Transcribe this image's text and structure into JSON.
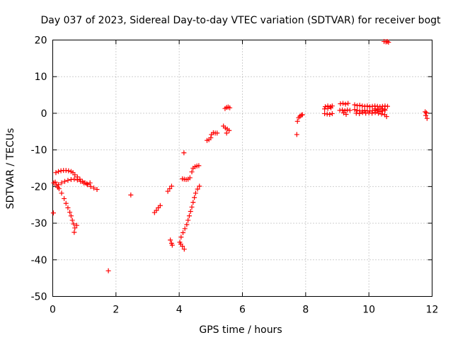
{
  "chart_data": {
    "type": "scatter",
    "title": "Day 037 of 2023, Sidereal Day-to-day VTEC variation (SDTVAR) for receiver bogt",
    "xlabel": "GPS time / hours",
    "ylabel": "SDTVAR / TECUs",
    "xlim": [
      0,
      12
    ],
    "ylim": [
      -50,
      20
    ],
    "xticks": [
      0,
      2,
      4,
      6,
      8,
      10,
      12
    ],
    "yticks": [
      -50,
      -40,
      -30,
      -20,
      -10,
      0,
      10,
      20
    ],
    "grid": true,
    "marker": "plus",
    "marker_color": "#ff0000",
    "series": [
      {
        "points": [
          [
            0.02,
            -27.2
          ],
          [
            0.03,
            -19.0
          ],
          [
            0.08,
            -18.8
          ],
          [
            0.12,
            -19.6
          ],
          [
            0.16,
            -20.2
          ],
          [
            0.1,
            -16.2
          ],
          [
            0.18,
            -15.9
          ],
          [
            0.26,
            -15.7
          ],
          [
            0.34,
            -15.6
          ],
          [
            0.42,
            -15.6
          ],
          [
            0.5,
            -15.7
          ],
          [
            0.58,
            -15.9
          ],
          [
            0.64,
            -16.2
          ],
          [
            0.7,
            -16.8
          ],
          [
            0.78,
            -17.4
          ],
          [
            0.86,
            -18.0
          ],
          [
            0.94,
            -18.6
          ],
          [
            1.02,
            -19.0
          ],
          [
            1.1,
            -19.5
          ],
          [
            1.2,
            -20.0
          ],
          [
            1.3,
            -20.4
          ],
          [
            1.4,
            -20.8
          ],
          [
            0.18,
            -19.5
          ],
          [
            0.28,
            -19.0
          ],
          [
            0.38,
            -18.6
          ],
          [
            0.48,
            -18.3
          ],
          [
            0.58,
            -18.1
          ],
          [
            0.68,
            -18.0
          ],
          [
            0.78,
            -18.2
          ],
          [
            0.88,
            -18.6
          ],
          [
            0.98,
            -19.0
          ],
          [
            1.08,
            -19.2
          ],
          [
            1.18,
            -19.0
          ],
          [
            0.2,
            -20.6
          ],
          [
            0.28,
            -21.8
          ],
          [
            0.36,
            -23.3
          ],
          [
            0.42,
            -24.6
          ],
          [
            0.48,
            -25.8
          ],
          [
            0.54,
            -27.0
          ],
          [
            0.58,
            -28.0
          ],
          [
            0.62,
            -29.2
          ],
          [
            0.66,
            -30.2
          ],
          [
            0.7,
            -31.3
          ],
          [
            0.68,
            -32.5
          ],
          [
            0.76,
            -30.6
          ],
          [
            1.76,
            -43.0
          ],
          [
            2.47,
            -22.3
          ],
          [
            3.22,
            -27.1
          ],
          [
            3.28,
            -26.5
          ],
          [
            3.34,
            -25.8
          ],
          [
            3.4,
            -25.2
          ],
          [
            3.64,
            -21.3
          ],
          [
            3.7,
            -20.6
          ],
          [
            3.76,
            -19.9
          ],
          [
            3.72,
            -34.6
          ],
          [
            3.76,
            -35.5
          ],
          [
            3.78,
            -36.0
          ],
          [
            4.05,
            -35.7
          ],
          [
            4.1,
            -36.3
          ],
          [
            4.16,
            -37.1
          ],
          [
            4.02,
            -35.2
          ],
          [
            4.06,
            -33.8
          ],
          [
            4.12,
            -32.6
          ],
          [
            4.18,
            -31.5
          ],
          [
            4.24,
            -30.4
          ],
          [
            4.28,
            -29.2
          ],
          [
            4.32,
            -28.0
          ],
          [
            4.36,
            -26.8
          ],
          [
            4.4,
            -25.6
          ],
          [
            4.44,
            -24.3
          ],
          [
            4.48,
            -23.0
          ],
          [
            4.52,
            -21.8
          ],
          [
            4.58,
            -20.7
          ],
          [
            4.64,
            -19.9
          ],
          [
            4.15,
            -10.8
          ],
          [
            4.1,
            -17.9
          ],
          [
            4.16,
            -18.0
          ],
          [
            4.22,
            -18.1
          ],
          [
            4.28,
            -18.0
          ],
          [
            4.34,
            -17.6
          ],
          [
            4.4,
            -16.0
          ],
          [
            4.44,
            -15.0
          ],
          [
            4.5,
            -14.6
          ],
          [
            4.56,
            -14.4
          ],
          [
            4.62,
            -14.3
          ],
          [
            4.88,
            -7.4
          ],
          [
            4.94,
            -7.2
          ],
          [
            5.0,
            -6.7
          ],
          [
            5.02,
            -5.8
          ],
          [
            5.08,
            -5.3
          ],
          [
            5.14,
            -5.4
          ],
          [
            5.2,
            -5.4
          ],
          [
            5.4,
            -3.5
          ],
          [
            5.46,
            -4.0
          ],
          [
            5.52,
            -4.3
          ],
          [
            5.58,
            -4.7
          ],
          [
            5.5,
            -5.4
          ],
          [
            5.45,
            1.3
          ],
          [
            5.5,
            1.6
          ],
          [
            5.55,
            1.7
          ],
          [
            5.6,
            1.5
          ],
          [
            7.72,
            -5.8
          ],
          [
            7.74,
            -2.2
          ],
          [
            7.78,
            -1.2
          ],
          [
            7.82,
            -0.8
          ],
          [
            7.86,
            -0.5
          ],
          [
            7.9,
            -0.4
          ],
          [
            8.62,
            1.8
          ],
          [
            8.7,
            2.0
          ],
          [
            8.78,
            1.8
          ],
          [
            8.84,
            2.0
          ],
          [
            8.6,
            -0.1
          ],
          [
            8.68,
            -0.2
          ],
          [
            8.76,
            -0.3
          ],
          [
            8.84,
            -0.1
          ],
          [
            8.6,
            1.2
          ],
          [
            8.7,
            1.3
          ],
          [
            8.8,
            1.5
          ],
          [
            9.1,
            2.6
          ],
          [
            9.18,
            2.7
          ],
          [
            9.26,
            2.5
          ],
          [
            9.34,
            2.7
          ],
          [
            9.08,
            0.8
          ],
          [
            9.16,
            0.9
          ],
          [
            9.24,
            0.7
          ],
          [
            9.32,
            0.9
          ],
          [
            9.4,
            0.8
          ],
          [
            9.2,
            0.1
          ],
          [
            9.28,
            -0.3
          ],
          [
            9.55,
            2.3
          ],
          [
            9.63,
            2.1
          ],
          [
            9.71,
            2.2
          ],
          [
            9.79,
            2.0
          ],
          [
            9.87,
            1.9
          ],
          [
            9.95,
            2.0
          ],
          [
            10.03,
            1.8
          ],
          [
            10.11,
            1.9
          ],
          [
            10.19,
            2.0
          ],
          [
            10.27,
            1.9
          ],
          [
            10.35,
            1.8
          ],
          [
            10.43,
            1.9
          ],
          [
            10.51,
            2.0
          ],
          [
            10.59,
            1.9
          ],
          [
            9.55,
            1.0
          ],
          [
            9.63,
            0.8
          ],
          [
            9.71,
            0.7
          ],
          [
            9.79,
            0.6
          ],
          [
            9.87,
            0.8
          ],
          [
            9.95,
            0.7
          ],
          [
            10.03,
            0.6
          ],
          [
            10.11,
            0.7
          ],
          [
            10.19,
            0.8
          ],
          [
            10.27,
            0.6
          ],
          [
            10.35,
            0.5
          ],
          [
            10.43,
            0.6
          ],
          [
            10.51,
            0.8
          ],
          [
            9.6,
            0.0
          ],
          [
            9.7,
            -0.1
          ],
          [
            9.8,
            0.2
          ],
          [
            9.9,
            0.0
          ],
          [
            10.0,
            0.1
          ],
          [
            10.1,
            0.0
          ],
          [
            10.2,
            0.2
          ],
          [
            10.3,
            0.0
          ],
          [
            10.4,
            -0.2
          ],
          [
            10.5,
            -0.4
          ],
          [
            10.56,
            -0.9
          ],
          [
            10.2,
            1.2
          ],
          [
            10.3,
            1.0
          ],
          [
            10.4,
            1.3
          ],
          [
            10.5,
            1.1
          ],
          [
            10.48,
            19.6
          ],
          [
            10.54,
            19.5
          ],
          [
            10.58,
            19.6
          ],
          [
            10.62,
            19.4
          ],
          [
            11.78,
            0.4
          ],
          [
            11.82,
            0.1
          ],
          [
            11.8,
            -0.6
          ],
          [
            11.84,
            -1.4
          ]
        ]
      }
    ]
  }
}
